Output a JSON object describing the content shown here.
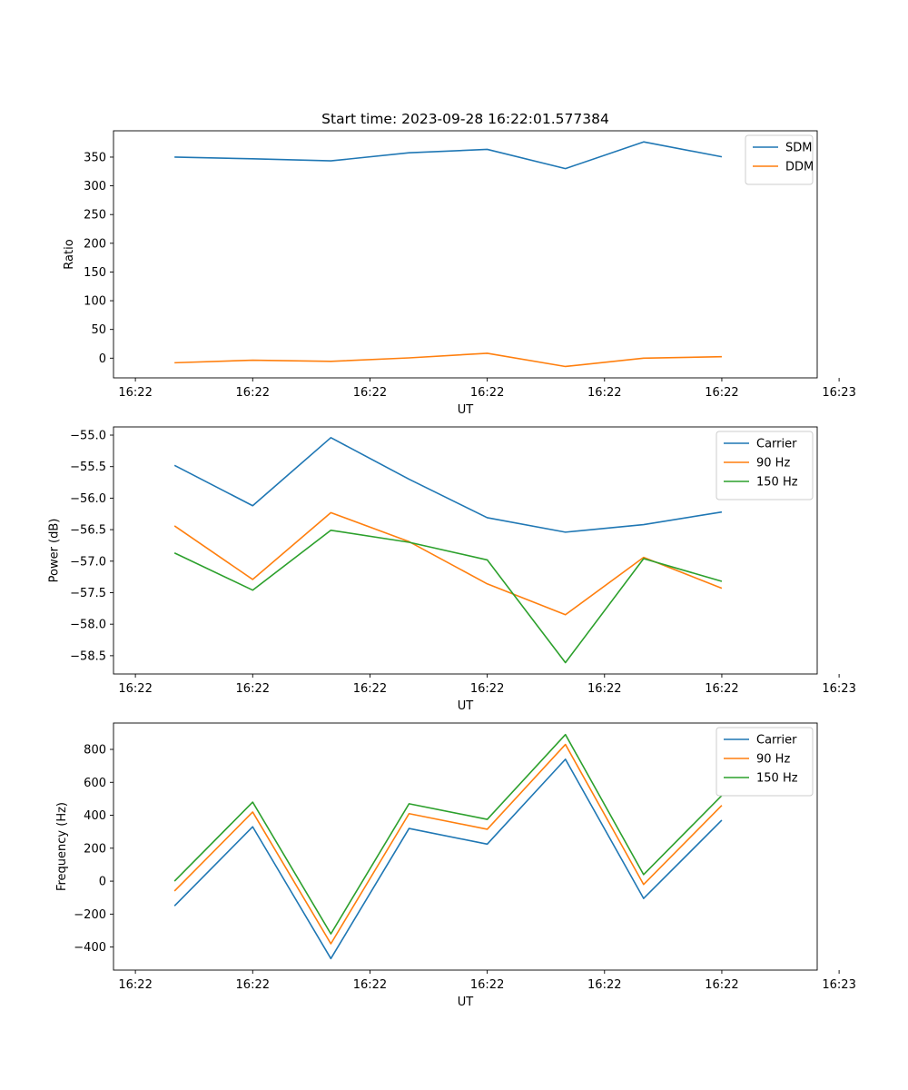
{
  "chart_data": [
    {
      "type": "line",
      "title": "Start time: 2023-09-28 16:22:01.577384",
      "xlabel": "UT",
      "ylabel": "Ratio",
      "x": [
        1,
        2,
        3,
        4,
        5,
        6,
        7,
        8
      ],
      "xlim": [
        0.22,
        9.22
      ],
      "xticks": [
        {
          "value": 0.5,
          "label": "16:22"
        },
        {
          "value": 2.0,
          "label": "16:22"
        },
        {
          "value": 3.5,
          "label": "16:22"
        },
        {
          "value": 5.0,
          "label": "16:22"
        },
        {
          "value": 6.5,
          "label": "16:22"
        },
        {
          "value": 8.0,
          "label": "16:22"
        },
        {
          "value": 9.5,
          "label": "16:23"
        }
      ],
      "ylim": [
        -34.3,
        395.8
      ],
      "yticks": [
        0,
        50,
        100,
        150,
        200,
        250,
        300,
        350
      ],
      "ytick_labels": [
        "0",
        "50",
        "100",
        "150",
        "200",
        "250",
        "300",
        "350"
      ],
      "legend": "top-right",
      "series": [
        {
          "name": "SDM",
          "color": "#1f77b4",
          "values": [
            350,
            347,
            343.5,
            357.5,
            363.5,
            330,
            376.5,
            350.5
          ]
        },
        {
          "name": "DDM",
          "color": "#ff7f0e",
          "values": [
            -8,
            -3.5,
            -5.5,
            0.5,
            8.5,
            -14.5,
            0,
            2.5
          ]
        }
      ]
    },
    {
      "type": "line",
      "title": "",
      "xlabel": "UT",
      "ylabel": "Power (dB)",
      "x": [
        1,
        2,
        3,
        4,
        5,
        6,
        7,
        8
      ],
      "xlim": [
        0.22,
        9.22
      ],
      "xticks": [
        {
          "value": 0.5,
          "label": "16:22"
        },
        {
          "value": 2.0,
          "label": "16:22"
        },
        {
          "value": 3.5,
          "label": "16:22"
        },
        {
          "value": 5.0,
          "label": "16:22"
        },
        {
          "value": 6.5,
          "label": "16:22"
        },
        {
          "value": 8.0,
          "label": "16:22"
        },
        {
          "value": 9.5,
          "label": "16:23"
        }
      ],
      "ylim": [
        -58.79,
        -54.87
      ],
      "yticks": [
        -55.0,
        -55.5,
        -56.0,
        -56.5,
        -57.0,
        -57.5,
        -58.0,
        -58.5
      ],
      "ytick_labels": [
        "−55.0",
        "−55.5",
        "−56.0",
        "−56.5",
        "−57.0",
        "−57.5",
        "−58.0",
        "−58.5"
      ],
      "legend": "top-right",
      "series": [
        {
          "name": "Carrier",
          "color": "#1f77b4",
          "values": [
            -55.48,
            -56.12,
            -55.04,
            -55.7,
            -56.31,
            -56.54,
            -56.42,
            -56.22
          ]
        },
        {
          "name": "90 Hz",
          "color": "#ff7f0e",
          "values": [
            -56.44,
            -57.29,
            -56.23,
            -56.69,
            -57.36,
            -57.85,
            -56.94,
            -57.43
          ]
        },
        {
          "name": "150 Hz",
          "color": "#2ca02c",
          "values": [
            -56.87,
            -57.46,
            -56.51,
            -56.7,
            -56.98,
            -58.61,
            -56.96,
            -57.32
          ]
        }
      ]
    },
    {
      "type": "line",
      "title": "",
      "xlabel": "UT",
      "ylabel": "Frequency (Hz)",
      "x": [
        1,
        2,
        3,
        4,
        5,
        6,
        7,
        8
      ],
      "xlim": [
        0.22,
        9.22
      ],
      "xticks": [
        {
          "value": 0.5,
          "label": "16:22"
        },
        {
          "value": 2.0,
          "label": "16:22"
        },
        {
          "value": 3.5,
          "label": "16:22"
        },
        {
          "value": 5.0,
          "label": "16:22"
        },
        {
          "value": 6.5,
          "label": "16:22"
        },
        {
          "value": 8.0,
          "label": "16:22"
        },
        {
          "value": 9.5,
          "label": "16:23"
        }
      ],
      "ylim": [
        -540,
        960
      ],
      "yticks": [
        -400,
        -200,
        0,
        200,
        400,
        600,
        800
      ],
      "ytick_labels": [
        "−400",
        "−200",
        "0",
        "200",
        "400",
        "600",
        "800"
      ],
      "legend": "top-right",
      "series": [
        {
          "name": "Carrier",
          "color": "#1f77b4",
          "values": [
            -150,
            330,
            -470,
            320,
            225,
            740,
            -105,
            370
          ]
        },
        {
          "name": "90 Hz",
          "color": "#ff7f0e",
          "values": [
            -60,
            420,
            -380,
            410,
            315,
            830,
            -20,
            460
          ]
        },
        {
          "name": "150 Hz",
          "color": "#2ca02c",
          "values": [
            0,
            480,
            -320,
            470,
            375,
            890,
            40,
            520
          ]
        }
      ]
    }
  ]
}
